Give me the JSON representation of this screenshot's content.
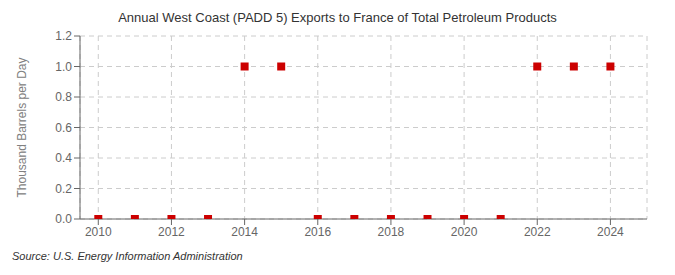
{
  "chart_data": {
    "type": "scatter",
    "title": "Annual West Coast (PADD 5) Exports to France of Total Petroleum Products",
    "ylabel": "Thousand Barrels per Day",
    "annotations": [
      "Source: U.S. Energy Information Administration"
    ],
    "x": [
      2010,
      2011,
      2012,
      2013,
      2014,
      2015,
      2016,
      2017,
      2018,
      2019,
      2020,
      2021,
      2022,
      2023,
      2024
    ],
    "values": [
      0,
      0,
      0,
      0,
      1,
      1,
      0,
      0,
      0,
      0,
      0,
      0,
      1,
      1,
      1
    ],
    "color": "#cc0000",
    "marker": "square",
    "xlim": [
      2009.5,
      2025.0
    ],
    "ylim": [
      0,
      1.2
    ],
    "xticks": [
      2010,
      2012,
      2014,
      2016,
      2018,
      2020,
      2022,
      2024
    ],
    "yticks": [
      {
        "value": 0,
        "label": "0.0"
      },
      0.2,
      0.4,
      0.6,
      0.8,
      {
        "value": 1,
        "label": "1.0"
      },
      1.2
    ],
    "grid": true
  }
}
